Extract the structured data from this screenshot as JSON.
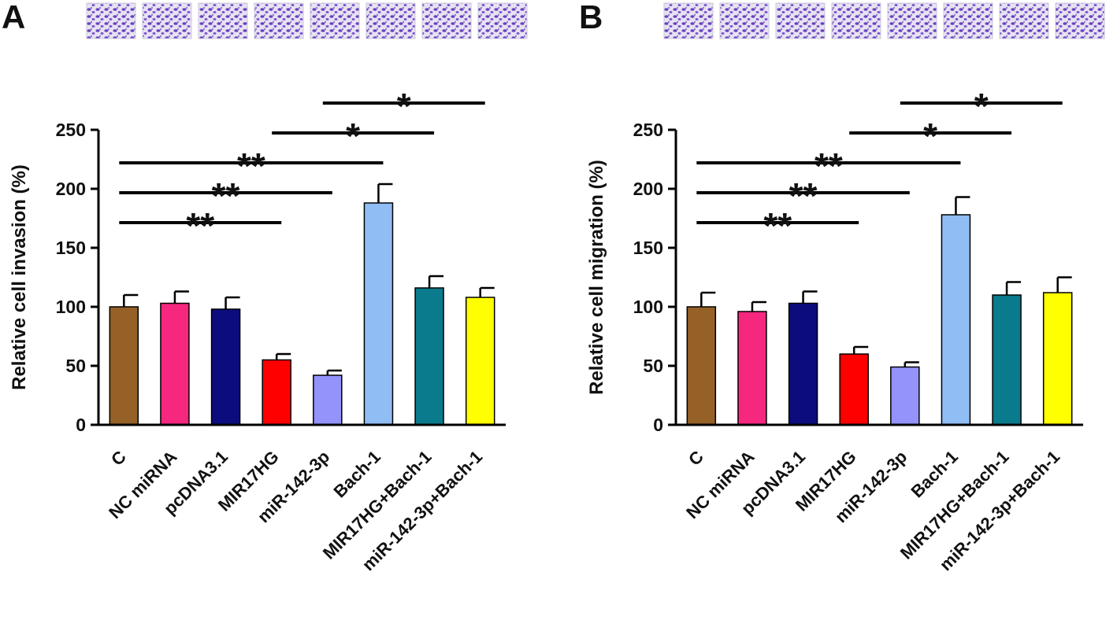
{
  "chart_data": [
    {
      "type": "bar",
      "panel": "A",
      "y_label": "Relative cell invasion (%)",
      "categories": [
        "C",
        "NC miRNA",
        "pcDNA3.1",
        "MIR17HG",
        "miR-142-3p",
        "Bach-1",
        "MIR17HG+Bach-1",
        "miR-142-3p+Bach-1"
      ],
      "values": [
        100,
        103,
        98,
        55,
        42,
        188,
        116,
        108
      ],
      "errors": [
        10,
        10,
        10,
        5,
        4,
        16,
        10,
        8
      ],
      "colors": [
        "#956127",
        "#f5277f",
        "#0c0c7e",
        "#ff0000",
        "#9393fb",
        "#90bdf3",
        "#0a7b8c",
        "#ffff00"
      ],
      "ylim": [
        0,
        250
      ],
      "yticks": [
        0,
        50,
        100,
        150,
        200,
        250
      ],
      "comparisons": [
        {
          "from": "C",
          "to": "MIR17HG",
          "label": "**"
        },
        {
          "from": "C",
          "to": "miR-142-3p",
          "label": "**"
        },
        {
          "from": "C",
          "to": "Bach-1",
          "label": "**"
        },
        {
          "from": "MIR17HG",
          "to": "MIR17HG+Bach-1",
          "label": "*"
        },
        {
          "from": "miR-142-3p",
          "to": "miR-142-3p+Bach-1",
          "label": "*"
        }
      ]
    },
    {
      "type": "bar",
      "panel": "B",
      "y_label": "Relative cell migration (%)",
      "categories": [
        "C",
        "NC miRNA",
        "pcDNA3.1",
        "MIR17HG",
        "miR-142-3p",
        "Bach-1",
        "MIR17HG+Bach-1",
        "miR-142-3p+Bach-1"
      ],
      "values": [
        100,
        96,
        103,
        60,
        49,
        178,
        110,
        112
      ],
      "errors": [
        12,
        8,
        10,
        6,
        4,
        15,
        11,
        13
      ],
      "colors": [
        "#956127",
        "#f5277f",
        "#0c0c7e",
        "#ff0000",
        "#9393fb",
        "#90bdf3",
        "#0a7b8c",
        "#ffff00"
      ],
      "ylim": [
        0,
        250
      ],
      "yticks": [
        0,
        50,
        100,
        150,
        200,
        250
      ],
      "comparisons": [
        {
          "from": "C",
          "to": "MIR17HG",
          "label": "**"
        },
        {
          "from": "C",
          "to": "miR-142-3p",
          "label": "**"
        },
        {
          "from": "C",
          "to": "Bach-1",
          "label": "**"
        },
        {
          "from": "MIR17HG",
          "to": "MIR17HG+Bach-1",
          "label": "*"
        },
        {
          "from": "miR-142-3p",
          "to": "miR-142-3p+Bach-1",
          "label": "*"
        }
      ]
    }
  ]
}
